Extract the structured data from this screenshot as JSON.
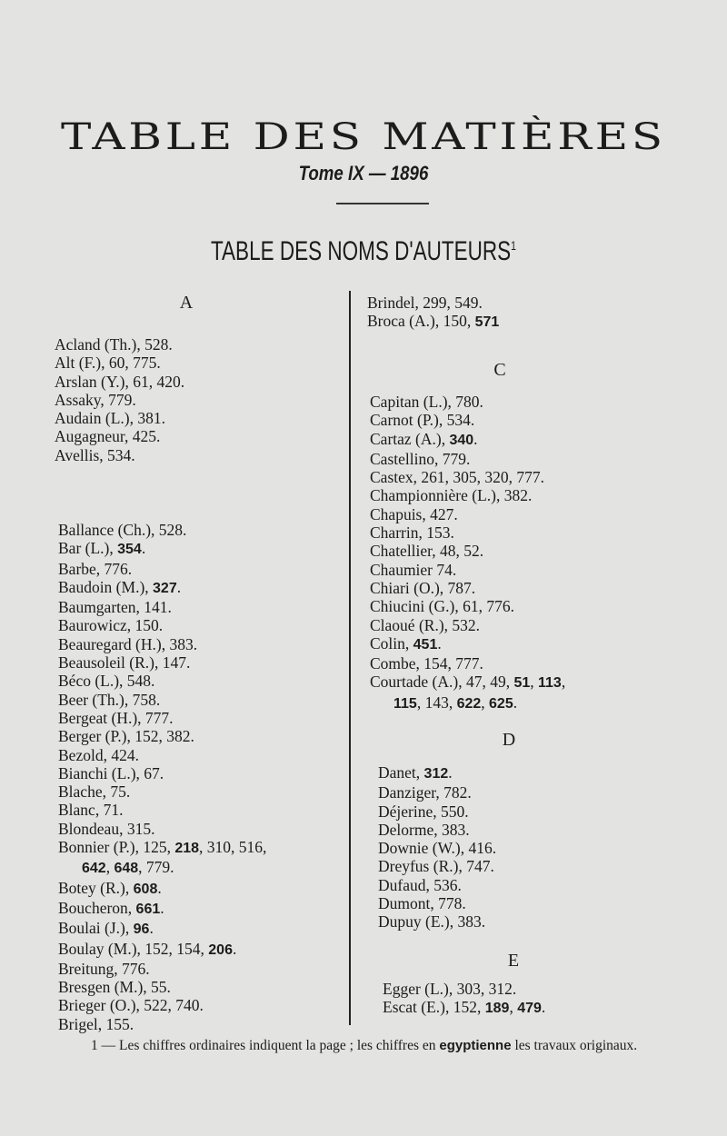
{
  "header": {
    "title": "TABLE DES MATIÈRES",
    "tome": "Tome IX — 1896",
    "subtitle": "TABLE DES NOMS D'AUTEURS",
    "subtitle_note_mark": "1"
  },
  "sections": {
    "A": {
      "letter": "A",
      "entries": [
        [
          {
            "t": "Acland (Th.), 528."
          }
        ],
        [
          {
            "t": "Alt (F.), 60, 775."
          }
        ],
        [
          {
            "t": "Arslan (Y.), 61, 420."
          }
        ],
        [
          {
            "t": "Assaky, 779."
          }
        ],
        [
          {
            "t": "Audain (L.), 381."
          }
        ],
        [
          {
            "t": "Augagneur, 425."
          }
        ],
        [
          {
            "t": "Avellis, 534."
          }
        ]
      ]
    },
    "B_left": {
      "entries": [
        [
          {
            "t": "Ballance (Ch.), 528."
          }
        ],
        [
          {
            "t": "Bar (L.), "
          },
          {
            "t": "354",
            "b": true
          },
          {
            "t": "."
          }
        ],
        [
          {
            "t": "Barbe, 776."
          }
        ],
        [
          {
            "t": "Baudoin (M.), "
          },
          {
            "t": "327",
            "b": true
          },
          {
            "t": "."
          }
        ],
        [
          {
            "t": "Baumgarten, 141."
          }
        ],
        [
          {
            "t": "Baurowicz, 150."
          }
        ],
        [
          {
            "t": "Beauregard (H.), 383."
          }
        ],
        [
          {
            "t": "Beausoleil (R.), 147."
          }
        ],
        [
          {
            "t": "Béco (L.), 548."
          }
        ],
        [
          {
            "t": "Beer (Th.), 758."
          }
        ],
        [
          {
            "t": "Bergeat (H.), 777."
          }
        ],
        [
          {
            "t": "Berger (P.), 152, 382."
          }
        ],
        [
          {
            "t": "Bezold, 424."
          }
        ],
        [
          {
            "t": "Bianchi (L.), 67."
          }
        ],
        [
          {
            "t": "Blache, 75."
          }
        ],
        [
          {
            "t": "Blanc, 71."
          }
        ],
        [
          {
            "t": "Blondeau, 315."
          }
        ],
        [
          {
            "t": "Bonnier (P.), 125, "
          },
          {
            "t": "218",
            "b": true
          },
          {
            "t": ",  310, 516,"
          }
        ],
        [
          {
            "c": true
          },
          {
            "t": "642",
            "b": true
          },
          {
            "t": ", "
          },
          {
            "t": "648",
            "b": true
          },
          {
            "t": ", 779."
          }
        ],
        [
          {
            "t": "Botey (R.), "
          },
          {
            "t": "608",
            "b": true
          },
          {
            "t": "."
          }
        ],
        [
          {
            "t": "Boucheron, "
          },
          {
            "t": "661",
            "b": true
          },
          {
            "t": "."
          }
        ],
        [
          {
            "t": "Boulai (J.), "
          },
          {
            "t": "96",
            "b": true
          },
          {
            "t": "."
          }
        ],
        [
          {
            "t": "Boulay (M.), 152, 154, "
          },
          {
            "t": "206",
            "b": true
          },
          {
            "t": "."
          }
        ],
        [
          {
            "t": "Breitung, 776."
          }
        ],
        [
          {
            "t": "Bresgen (M.), 55."
          }
        ],
        [
          {
            "t": "Brieger (O.), 522, 740."
          }
        ],
        [
          {
            "t": "Brigel, 155."
          }
        ]
      ]
    },
    "B_right": {
      "entries": [
        [
          {
            "t": "Brindel, 299, 549."
          }
        ],
        [
          {
            "t": "Broca (A.), 150, "
          },
          {
            "t": "571",
            "b": true
          }
        ]
      ]
    },
    "C": {
      "letter": "C",
      "entries": [
        [
          {
            "t": "Capitan (L.), 780."
          }
        ],
        [
          {
            "t": "Carnot (P.), 534."
          }
        ],
        [
          {
            "t": "Cartaz (A.), "
          },
          {
            "t": "340",
            "b": true
          },
          {
            "t": "."
          }
        ],
        [
          {
            "t": "Castellino, 779."
          }
        ],
        [
          {
            "t": "Castex, 261, 305, 320, 777."
          }
        ],
        [
          {
            "t": "Championnière (L.), 382."
          }
        ],
        [
          {
            "t": "Chapuis, 427."
          }
        ],
        [
          {
            "t": "Charrin, 153."
          }
        ],
        [
          {
            "t": "Chatellier, 48, 52."
          }
        ],
        [
          {
            "t": "Chaumier 74."
          }
        ],
        [
          {
            "t": "Chiari (O.), 787."
          }
        ],
        [
          {
            "t": "Chiucini (G.), 61, 776."
          }
        ],
        [
          {
            "t": "Claoué (R.), 532."
          }
        ],
        [
          {
            "t": "Colin, "
          },
          {
            "t": "451",
            "b": true
          },
          {
            "t": "."
          }
        ],
        [
          {
            "t": "Combe, 154, 777."
          }
        ],
        [
          {
            "t": "Courtade (A.), 47, 49, "
          },
          {
            "t": "51",
            "b": true
          },
          {
            "t": ", "
          },
          {
            "t": "113",
            "b": true
          },
          {
            "t": ","
          }
        ],
        [
          {
            "c": true
          },
          {
            "t": "115",
            "b": true
          },
          {
            "t": ", 143, "
          },
          {
            "t": "622",
            "b": true
          },
          {
            "t": ", "
          },
          {
            "t": "625",
            "b": true
          },
          {
            "t": "."
          }
        ]
      ]
    },
    "D": {
      "letter": "D",
      "entries": [
        [
          {
            "t": "Danet, "
          },
          {
            "t": "312",
            "b": true
          },
          {
            "t": "."
          }
        ],
        [
          {
            "t": "Danziger, 782."
          }
        ],
        [
          {
            "t": "Déjerine, 550."
          }
        ],
        [
          {
            "t": "Delorme, 383."
          }
        ],
        [
          {
            "t": "Downie (W.), 416."
          }
        ],
        [
          {
            "t": "Dreyfus (R.), 747."
          }
        ],
        [
          {
            "t": "Dufaud, 536."
          }
        ],
        [
          {
            "t": "Dumont, 778."
          }
        ],
        [
          {
            "t": "Dupuy (E.), 383."
          }
        ]
      ]
    },
    "E": {
      "letter": "E",
      "entries": [
        [
          {
            "t": "Egger (L.), 303, 312."
          }
        ],
        [
          {
            "t": "Escat (E.), 152, "
          },
          {
            "t": "189",
            "b": true
          },
          {
            "t": ", "
          },
          {
            "t": "479",
            "b": true
          },
          {
            "t": "."
          }
        ]
      ]
    }
  },
  "footnote": {
    "mark": "1",
    "text_1": " — Les chiffres ordinaires indiquent la page ; les chiffres en ",
    "text_bold": "egyptienne",
    "text_2": " les travaux originaux."
  }
}
